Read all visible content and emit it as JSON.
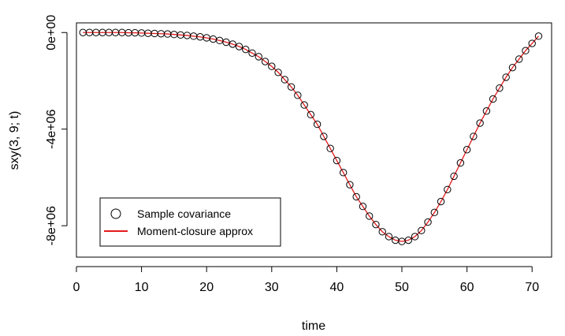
{
  "chart_data": {
    "type": "scatter",
    "title": "",
    "xlabel": "time",
    "ylabel": "sxy(3, 9; t)",
    "xlim": [
      0,
      73
    ],
    "ylim": [
      -9300000,
      400000
    ],
    "x_ticks": [
      0,
      10,
      20,
      30,
      40,
      50,
      60,
      70
    ],
    "x_tick_labels": [
      "0",
      "10",
      "20",
      "30",
      "40",
      "50",
      "60",
      "70"
    ],
    "y_ticks": [
      0,
      -4000000,
      -8000000
    ],
    "y_tick_labels": [
      "0e+00",
      "-4e+06",
      "-8e+06"
    ],
    "grid": false,
    "legend_position": "bottom-left",
    "series": [
      {
        "name": "Sample covariance",
        "style": "open-circle",
        "color": "#000000",
        "x": [
          1,
          2,
          3,
          4,
          5,
          6,
          7,
          8,
          9,
          10,
          11,
          12,
          13,
          14,
          15,
          16,
          17,
          18,
          19,
          20,
          21,
          22,
          23,
          24,
          25,
          26,
          27,
          28,
          29,
          30,
          31,
          32,
          33,
          34,
          35,
          36,
          37,
          38,
          39,
          40,
          41,
          42,
          43,
          44,
          45,
          46,
          47,
          48,
          49,
          50,
          51,
          52,
          53,
          54,
          55,
          56,
          57,
          58,
          59,
          60,
          61,
          62,
          63,
          64,
          65,
          66,
          67,
          68,
          69,
          70,
          71
        ],
        "y": [
          0,
          0,
          0,
          0,
          0,
          0,
          0,
          -10000,
          -10000,
          -20000,
          -30000,
          -40000,
          -50000,
          -60000,
          -80000,
          -100000,
          -120000,
          -150000,
          -180000,
          -220000,
          -270000,
          -330000,
          -400000,
          -480000,
          -580000,
          -700000,
          -850000,
          -1000000,
          -1200000,
          -1400000,
          -1650000,
          -1950000,
          -2250000,
          -2600000,
          -3000000,
          -3400000,
          -3800000,
          -4300000,
          -4800000,
          -5300000,
          -5800000,
          -6300000,
          -6800000,
          -7200000,
          -7600000,
          -7950000,
          -8250000,
          -8450000,
          -8600000,
          -8650000,
          -8600000,
          -8450000,
          -8200000,
          -7850000,
          -7450000,
          -7000000,
          -6500000,
          -5950000,
          -5400000,
          -4850000,
          -4300000,
          -3750000,
          -3250000,
          -2750000,
          -2300000,
          -1850000,
          -1450000,
          -1100000,
          -750000,
          -450000,
          -150000
        ]
      },
      {
        "name": "Moment-closure approx",
        "style": "line",
        "color": "#e41a1c",
        "x": [
          1,
          2,
          3,
          4,
          5,
          6,
          7,
          8,
          9,
          10,
          11,
          12,
          13,
          14,
          15,
          16,
          17,
          18,
          19,
          20,
          21,
          22,
          23,
          24,
          25,
          26,
          27,
          28,
          29,
          30,
          31,
          32,
          33,
          34,
          35,
          36,
          37,
          38,
          39,
          40,
          41,
          42,
          43,
          44,
          45,
          46,
          47,
          48,
          49,
          50,
          51,
          52,
          53,
          54,
          55,
          56,
          57,
          58,
          59,
          60,
          61,
          62,
          63,
          64,
          65,
          66,
          67,
          68,
          69,
          70,
          71
        ],
        "y": [
          0,
          0,
          0,
          0,
          0,
          0,
          0,
          -10000,
          -10000,
          -20000,
          -30000,
          -40000,
          -50000,
          -60000,
          -80000,
          -100000,
          -120000,
          -150000,
          -180000,
          -220000,
          -270000,
          -330000,
          -400000,
          -480000,
          -580000,
          -700000,
          -850000,
          -1000000,
          -1200000,
          -1400000,
          -1650000,
          -1950000,
          -2250000,
          -2600000,
          -3000000,
          -3400000,
          -3800000,
          -4300000,
          -4800000,
          -5300000,
          -5800000,
          -6300000,
          -6800000,
          -7200000,
          -7600000,
          -7950000,
          -8250000,
          -8450000,
          -8600000,
          -8650000,
          -8600000,
          -8450000,
          -8200000,
          -7850000,
          -7450000,
          -7000000,
          -6500000,
          -5950000,
          -5400000,
          -4850000,
          -4300000,
          -3750000,
          -3250000,
          -2750000,
          -2300000,
          -1850000,
          -1450000,
          -1100000,
          -750000,
          -450000,
          -150000
        ]
      }
    ],
    "legend": [
      {
        "label": "Sample covariance",
        "symbol": "open-circle",
        "color": "#000000"
      },
      {
        "label": "Moment-closure approx",
        "symbol": "line",
        "color": "#e41a1c"
      }
    ]
  }
}
